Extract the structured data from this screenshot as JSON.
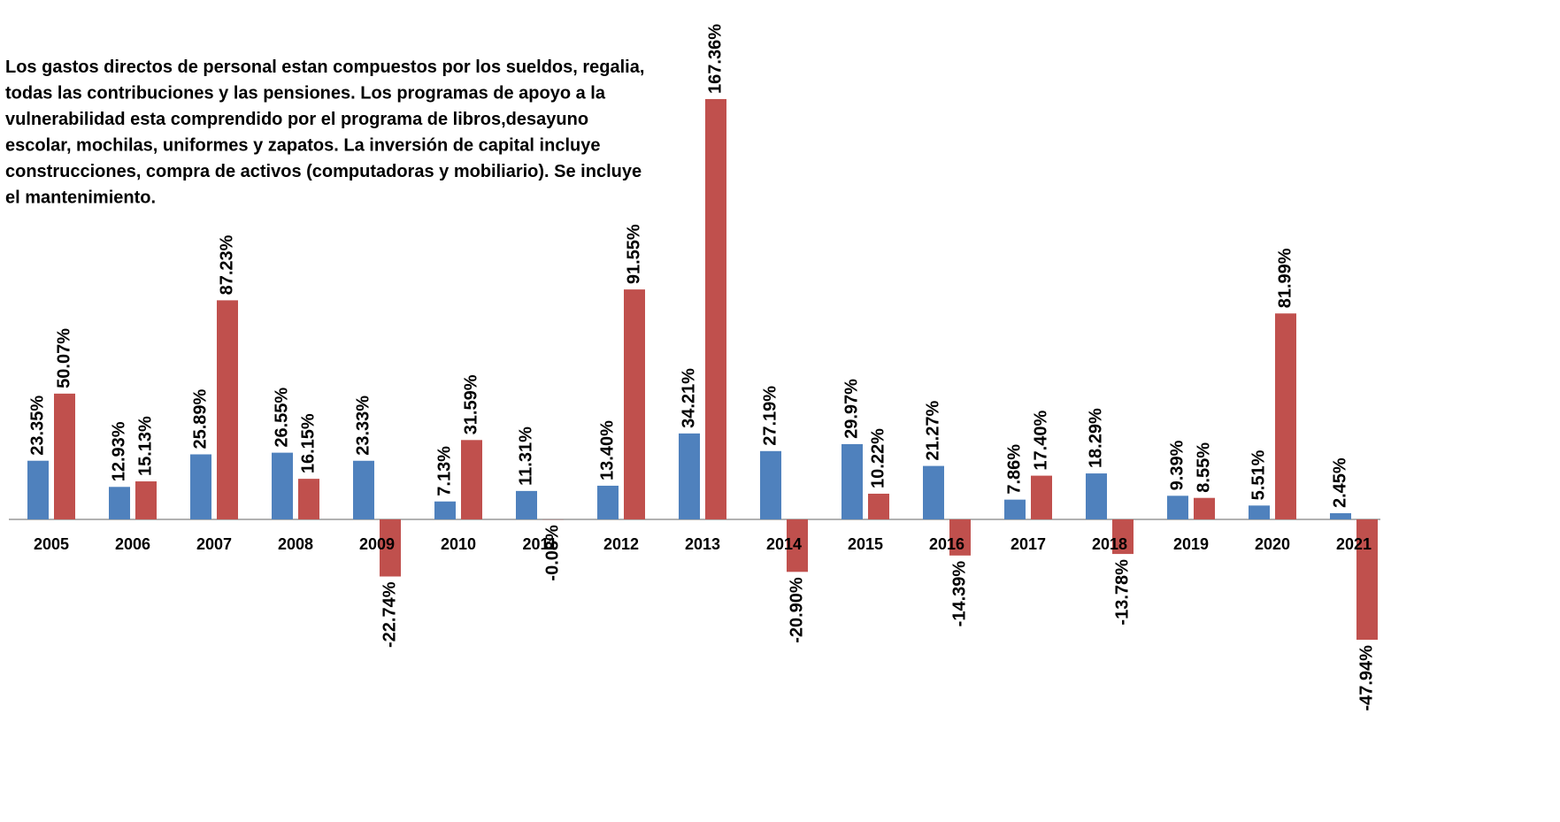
{
  "chart_data": {
    "type": "bar",
    "annotation": [
      "Los gastos directos de personal estan compuestos por los sueldos, regalia,",
      "todas las contribuciones y las pensiones. Los programas de apoyo a la",
      "vulnerabilidad esta comprendido por el programa de libros,desayuno",
      "escolar, mochilas, uniformes y zapatos. La inversión de capital incluye",
      "construcciones, compra de activos (computadoras y mobiliario). Se incluye",
      "el mantenimiento."
    ],
    "categories": [
      "2005",
      "2006",
      "2007",
      "2008",
      "2009",
      "2010",
      "2011",
      "2012",
      "2013",
      "2014",
      "2015",
      "2016",
      "2017",
      "2018",
      "2019",
      "2020",
      "2021"
    ],
    "series": [
      {
        "color": "#4f81bd",
        "values": [
          23.35,
          12.93,
          25.89,
          26.55,
          23.33,
          7.13,
          11.31,
          13.4,
          34.21,
          27.19,
          29.97,
          21.27,
          7.86,
          18.29,
          9.39,
          5.51,
          2.45
        ],
        "value_labels": [
          "23.35%",
          "12.93%",
          "25.89%",
          "26.55%",
          "23.33%",
          "7.13%",
          "11.31%",
          "13.40%",
          "34.21%",
          "27.19%",
          "29.97%",
          "21.27%",
          "7.86%",
          "18.29%",
          "9.39%",
          "5.51%",
          "2.45%"
        ]
      },
      {
        "color": "#c0504d",
        "values": [
          50.07,
          15.13,
          87.23,
          16.15,
          -22.74,
          31.59,
          -0.08,
          91.55,
          167.36,
          -20.9,
          10.22,
          -14.39,
          17.4,
          -13.78,
          8.55,
          81.99,
          -47.94
        ],
        "value_labels": [
          "50.07%",
          "15.13%",
          "87.23%",
          "16.15%",
          "-22.74%",
          "31.59%",
          "-0.08%",
          "91.55%",
          "167.36%",
          "-20.90%",
          "10.22%",
          "-14.39%",
          "17.40%",
          "-13.78%",
          "8.55%",
          "81.99%",
          "-47.94%"
        ]
      }
    ],
    "ylim": [
      -120.5,
      206.8
    ]
  }
}
